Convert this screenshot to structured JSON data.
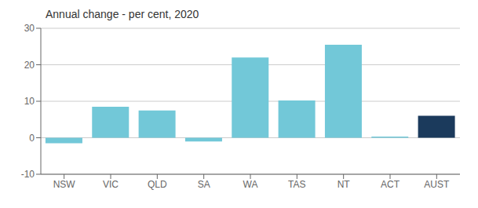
{
  "chart_data": {
    "type": "bar",
    "title": "Annual change - per cent, 2020",
    "categories": [
      "NSW",
      "VIC",
      "QLD",
      "SA",
      "WA",
      "TAS",
      "NT",
      "ACT",
      "AUST"
    ],
    "values": [
      -1.5,
      8.5,
      7.5,
      -1.0,
      22.0,
      10.2,
      25.5,
      0.3,
      6.0
    ],
    "colors": [
      "#72c8d8",
      "#72c8d8",
      "#72c8d8",
      "#72c8d8",
      "#72c8d8",
      "#72c8d8",
      "#72c8d8",
      "#72c8d8",
      "#1b3a5c"
    ],
    "ylim": [
      -10,
      30
    ],
    "yticks": [
      -10,
      0,
      10,
      20,
      30
    ],
    "grid": true
  }
}
